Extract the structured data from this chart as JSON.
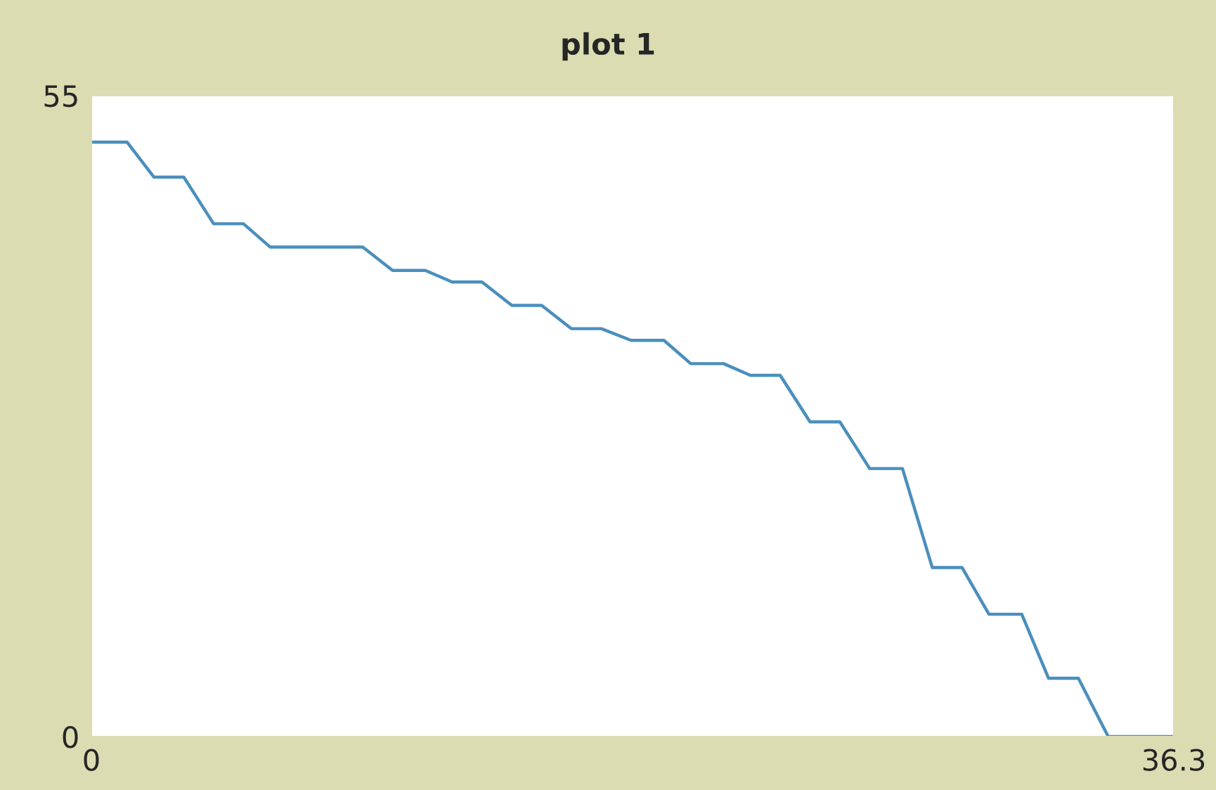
{
  "chart_data": {
    "type": "line",
    "title": "plot 1",
    "x": [
      0,
      1.2,
      2.1,
      3.1,
      4.1,
      5.1,
      6,
      9.1,
      10.1,
      11.2,
      12.1,
      13.1,
      14.1,
      15.1,
      16.1,
      17.1,
      18.1,
      19.2,
      20.1,
      21.2,
      22.1,
      23.1,
      24.1,
      25.1,
      26.1,
      27.2,
      28.2,
      29.2,
      30.1,
      31.2,
      32.1,
      33.1,
      34.1,
      36.3
    ],
    "series": [
      {
        "color": "#4a8fbd",
        "values": [
          51,
          51,
          48,
          48,
          44,
          44,
          42,
          42,
          40,
          40,
          39,
          39,
          37,
          37,
          35,
          35,
          34,
          34,
          32,
          32,
          31,
          31,
          27,
          27,
          23,
          23,
          14.5,
          14.5,
          10.5,
          10.5,
          5,
          5,
          0,
          0
        ]
      }
    ],
    "xlim": [
      0,
      36.3
    ],
    "ylim": [
      0,
      55
    ],
    "xticks": [
      0,
      36.3
    ],
    "yticks": [
      0,
      55
    ],
    "grid": false,
    "marker": "none",
    "line_style": "solid"
  }
}
